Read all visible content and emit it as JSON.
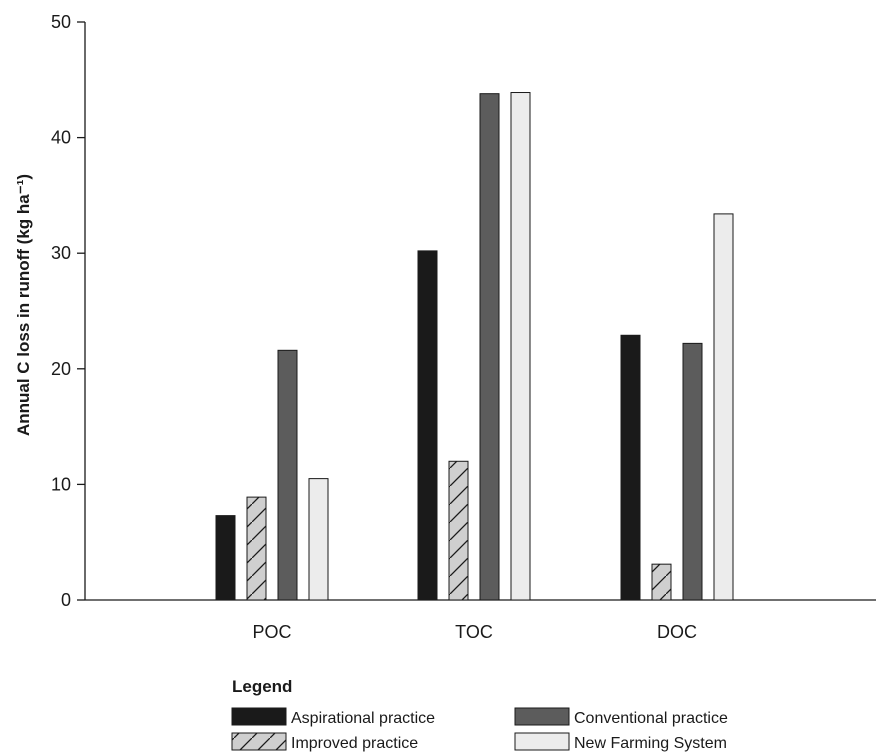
{
  "chart_data": {
    "type": "bar",
    "title": "",
    "xlabel": "",
    "ylabel": "Annual C loss in runoff (kg ha⁻¹)",
    "ylim": [
      0,
      50
    ],
    "yticks": [
      0,
      10,
      20,
      30,
      40,
      50
    ],
    "categories": [
      "POC",
      "TOC",
      "DOC"
    ],
    "grid": false,
    "legend_title": "Legend",
    "legend_placement": "bottom",
    "series": [
      {
        "name": "Aspirational practice",
        "values": [
          7.3,
          30.2,
          22.9
        ],
        "color": "#1a1a1a",
        "pattern": "solid"
      },
      {
        "name": "Improved practice",
        "values": [
          8.9,
          12.0,
          3.1
        ],
        "color": "#cfcfcf",
        "pattern": "hatch"
      },
      {
        "name": "Conventional practice",
        "values": [
          21.6,
          43.8,
          22.2
        ],
        "color": "#5c5c5c",
        "pattern": "solid"
      },
      {
        "name": "New Farming System",
        "values": [
          10.5,
          43.9,
          33.4
        ],
        "color": "#ececec",
        "pattern": "solid"
      }
    ]
  }
}
